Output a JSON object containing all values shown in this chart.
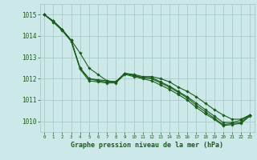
{
  "title": "Graphe pression niveau de la mer (hPa)",
  "background_color": "#cce8e8",
  "grid_color": "#aacaca",
  "line_color": "#1a5c1a",
  "marker_color": "#1a5c1a",
  "xlim": [
    -0.5,
    23.5
  ],
  "ylim": [
    1009.5,
    1015.5
  ],
  "yticks": [
    1010,
    1011,
    1012,
    1013,
    1014,
    1015
  ],
  "xticks": [
    0,
    1,
    2,
    3,
    4,
    5,
    6,
    7,
    8,
    9,
    10,
    11,
    12,
    13,
    14,
    15,
    16,
    17,
    18,
    19,
    20,
    21,
    22,
    23
  ],
  "series": [
    [
      1015.0,
      1014.7,
      1014.3,
      1013.8,
      1013.2,
      1012.5,
      1012.2,
      1011.9,
      1011.85,
      1012.25,
      1012.2,
      1012.1,
      1012.1,
      1012.0,
      1011.85,
      1011.6,
      1011.4,
      1011.15,
      1010.85,
      1010.55,
      1010.3,
      1010.1,
      1010.1,
      1010.3
    ],
    [
      1015.0,
      1014.7,
      1014.3,
      1013.8,
      1012.5,
      1012.0,
      1011.95,
      1011.9,
      1011.85,
      1012.25,
      1012.15,
      1012.05,
      1012.05,
      1011.85,
      1011.65,
      1011.4,
      1011.15,
      1010.85,
      1010.55,
      1010.25,
      1009.95,
      1009.95,
      1010.05,
      1010.3
    ],
    [
      1015.0,
      1014.7,
      1014.3,
      1013.8,
      1012.5,
      1012.0,
      1011.9,
      1011.85,
      1011.85,
      1012.25,
      1012.15,
      1012.05,
      1012.0,
      1011.8,
      1011.6,
      1011.35,
      1011.1,
      1010.75,
      1010.45,
      1010.15,
      1009.85,
      1009.9,
      1009.95,
      1010.3
    ],
    [
      1015.0,
      1014.65,
      1014.25,
      1013.75,
      1012.45,
      1011.9,
      1011.85,
      1011.8,
      1011.8,
      1012.2,
      1012.1,
      1012.0,
      1011.9,
      1011.7,
      1011.5,
      1011.25,
      1011.0,
      1010.65,
      1010.35,
      1010.1,
      1009.8,
      1009.85,
      1009.9,
      1010.25
    ]
  ]
}
